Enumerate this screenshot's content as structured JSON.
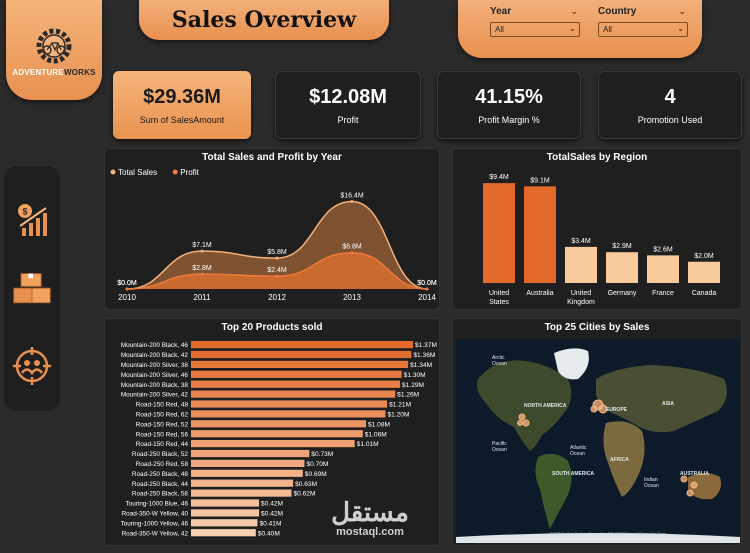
{
  "logo": {
    "text_a": "ADVENTURE",
    "text_b": "WORKS"
  },
  "title": "Sales Overview",
  "filters": [
    {
      "label": "Year",
      "value": "All"
    },
    {
      "label": "Country",
      "value": "All"
    }
  ],
  "kpis": [
    {
      "value": "$29.36M",
      "caption": "Sum of SalesAmount"
    },
    {
      "value": "$12.08M",
      "caption": "Profit"
    },
    {
      "value": "41.15%",
      "caption": "Profit Margin %"
    },
    {
      "value": "4",
      "caption": "Promotion Used"
    }
  ],
  "sidebar": {
    "icons": [
      "money-growth-icon",
      "boxes-icon",
      "customers-target-icon"
    ]
  },
  "colors": {
    "accent": "#e8904f",
    "accent_light": "#f6b57c",
    "panel": "#1f1f1f",
    "bar_dark": "#e46a2c",
    "bar_light": "#f7c99b"
  },
  "chart_data": [
    {
      "type": "area",
      "title": "Total Sales and Profit by Year",
      "legend_position": "top-left",
      "x": [
        "2010",
        "2011",
        "2012",
        "2013",
        "2014"
      ],
      "series": [
        {
          "name": "Total Sales",
          "values": [
            0.0,
            7.1,
            5.8,
            16.4,
            0.0
          ],
          "labels": [
            "$0.0M",
            "$7.1M",
            "$5.8M",
            "$16.4M",
            "$0.0M"
          ]
        },
        {
          "name": "Profit",
          "values": [
            0.0,
            2.8,
            2.4,
            6.8,
            0.0
          ],
          "labels": [
            "$0.0M",
            "$2.8M",
            "$2.4M",
            "$6.8M",
            "$0.0M"
          ]
        }
      ]
    },
    {
      "type": "bar",
      "title": "TotalSales by Region",
      "categories": [
        [
          "United",
          "States"
        ],
        [
          "Australia"
        ],
        [
          "United",
          "Kingdom"
        ],
        [
          "Germany"
        ],
        [
          "France"
        ],
        [
          "Canada"
        ]
      ],
      "values": [
        9.4,
        9.1,
        3.4,
        2.9,
        2.6,
        2.0
      ],
      "labels": [
        "$9.4M",
        "$9.1M",
        "$3.4M",
        "$2.9M",
        "$2.6M",
        "$2.0M"
      ]
    },
    {
      "type": "bar",
      "orientation": "horizontal",
      "title": "Top 20 Products sold",
      "categories": [
        "Mountain-200 Black, 46",
        "Mountain-200 Black, 42",
        "Mountain-200 Silver, 38",
        "Mountain-200 Silver, 46",
        "Mountain-200 Black, 38",
        "Mountain-200 Silver, 42",
        "Road-150 Red, 48",
        "Road-150 Red, 62",
        "Road-150 Red, 52",
        "Road-150 Red, 56",
        "Road-150 Red, 44",
        "Road-250 Black, 52",
        "Road-250 Red, 58",
        "Road-250 Black, 48",
        "Road-250 Black, 44",
        "Road-250 Black, 58",
        "Touring-1000 Blue, 46",
        "Road-350-W Yellow, 40",
        "Touring-1000 Yellow, 46",
        "Road-350-W Yellow, 42"
      ],
      "values": [
        1.37,
        1.36,
        1.34,
        1.3,
        1.29,
        1.26,
        1.21,
        1.2,
        1.08,
        1.06,
        1.01,
        0.73,
        0.7,
        0.69,
        0.63,
        0.62,
        0.42,
        0.42,
        0.41,
        0.4
      ],
      "labels": [
        "$1.37M",
        "$1.36M",
        "$1.34M",
        "$1.30M",
        "$1.29M",
        "$1.26M",
        "$1.21M",
        "$1.20M",
        "$1.08M",
        "$1.06M",
        "$1.01M",
        "$0.73M",
        "$0.70M",
        "$0.69M",
        "$0.63M",
        "$0.62M",
        "$0.42M",
        "$0.42M",
        "$0.41M",
        "$0.40M"
      ]
    }
  ],
  "map": {
    "title": "Top 25 Cities by Sales",
    "labels": {
      "arctic": [
        "Arctic",
        "Ocean"
      ],
      "north_america": "NORTH AMERICA",
      "europe": "EUROPE",
      "asia": "ASIA",
      "pacific": [
        "Pacific",
        "Ocean"
      ],
      "atlantic": [
        "Atlantic",
        "Ocean"
      ],
      "africa": "AFRICA",
      "south_america": "SOUTH AMERICA",
      "indian": [
        "Indian",
        "Ocean"
      ],
      "australia": "AUSTRALIA"
    },
    "credit": "© 2023 TomTom, Earthstar Geographics SIO, © 2023 Microsoft Corporation  Terms"
  },
  "watermark": {
    "arabic": "مستقل",
    "latin": "mostaql.com"
  }
}
